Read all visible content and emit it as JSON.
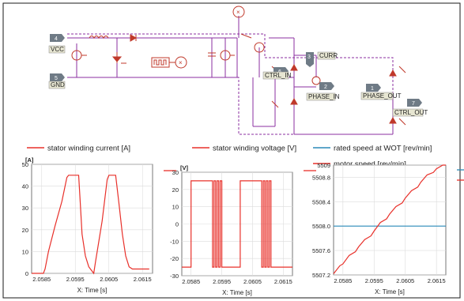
{
  "schematic": {
    "connectors": {
      "vcc": {
        "label": "VCC",
        "pin": "4"
      },
      "gnd": {
        "label": "GND",
        "pin": "5"
      },
      "ctrl_in": {
        "label": "CTRL_IN",
        "pin": "6"
      },
      "curr": {
        "label": "CURR",
        "pin": "3"
      },
      "phase_in": {
        "label": "PHASE_IN",
        "pin": "2"
      },
      "phase_out": {
        "label": "PHASE_OUT",
        "pin": "1"
      },
      "ctrl_out": {
        "label": "CTRL_OUT",
        "pin": "7"
      }
    },
    "colors": {
      "wire": "#8b2fa0",
      "component": "#c0392b",
      "connector_fill": "#e7e6d2"
    }
  },
  "chart_data": [
    {
      "type": "line",
      "legend": [
        "stator winding current [A]"
      ],
      "ylabel": "[A]",
      "xlabel": "X: Time [s]",
      "ylim": [
        0,
        50
      ],
      "yticks": [
        "0",
        "10",
        "20",
        "30",
        "40",
        "50"
      ],
      "xlim": [
        2.0582,
        2.0618
      ],
      "xticks": [
        "2.0585",
        "2.0595",
        "2.0605",
        "2.0615"
      ],
      "series": [
        {
          "name": "stator winding current [A]",
          "color": "#e8302a",
          "x": [
            2.0582,
            2.05855,
            2.0586,
            2.0587,
            2.0589,
            2.0591,
            2.05925,
            2.0593,
            2.0594,
            2.0596,
            2.05965,
            2.0597,
            2.0598,
            2.0599,
            2.06,
            2.06005,
            2.0601,
            2.0603,
            2.06045,
            2.0605,
            2.0606,
            2.0607,
            2.0608,
            2.0609,
            2.061,
            2.0611,
            2.0612,
            2.0613,
            2.0614,
            2.0615,
            2.0616,
            2.0617
          ],
          "y": [
            0,
            0,
            2,
            10,
            22,
            33,
            44,
            45,
            45,
            45,
            32,
            18,
            8,
            3,
            1,
            0,
            5,
            24,
            43,
            45,
            45,
            45,
            32,
            18,
            8,
            3,
            2,
            2,
            2,
            2,
            2,
            2
          ]
        }
      ]
    },
    {
      "type": "line",
      "legend": [
        "stator winding voltage [V]"
      ],
      "ylabel": "[V]",
      "xlabel": "X: Time [s]",
      "ylim": [
        -30,
        30
      ],
      "yticks": [
        "-30",
        "-20",
        "-10",
        "0",
        "10",
        "20",
        "30"
      ],
      "xlim": [
        2.0582,
        2.0618
      ],
      "xticks": [
        "2.0585",
        "2.0595",
        "2.0605",
        "2.0615"
      ],
      "series": [
        {
          "name": "stator winding voltage [V]",
          "color": "#e8302a",
          "x": [
            2.0582,
            2.0585,
            2.0585,
            2.0592,
            2.0592,
            2.05925,
            2.05925,
            2.0593,
            2.0593,
            2.05935,
            2.05935,
            2.0594,
            2.0594,
            2.05945,
            2.05945,
            2.0595,
            2.0595,
            2.0601,
            2.0601,
            2.0608,
            2.0608,
            2.06085,
            2.06085,
            2.0609,
            2.0609,
            2.06095,
            2.06095,
            2.061,
            2.061,
            2.06105,
            2.06105,
            2.0611,
            2.0611,
            2.0618
          ],
          "y": [
            -25,
            -25,
            25,
            25,
            -25,
            -25,
            25,
            25,
            -25,
            -25,
            25,
            25,
            -25,
            -25,
            25,
            25,
            -25,
            -25,
            25,
            25,
            -25,
            -25,
            25,
            25,
            -25,
            -25,
            25,
            25,
            -25,
            -25,
            25,
            25,
            -25,
            -25
          ]
        }
      ]
    },
    {
      "type": "line",
      "legend": [
        "rated speed at WOT [rev/min]",
        "motor speed [rev/min]"
      ],
      "xlabel": "X: Time [s]",
      "ylim": [
        5507.2,
        5509
      ],
      "yticks": [
        "5507.2",
        "5507.6",
        "5508.0",
        "5508.4",
        "5508.8",
        "5509"
      ],
      "xlim": [
        2.0582,
        2.0618
      ],
      "xticks": [
        "2.0585",
        "2.0595",
        "2.0605",
        "2.0615"
      ],
      "series": [
        {
          "name": "rated speed at WOT [rev/min]",
          "color": "#2a8ab8",
          "x": [
            2.0582,
            2.0618
          ],
          "y": [
            5508.0,
            5508.0
          ]
        },
        {
          "name": "motor speed [rev/min]",
          "color": "#e8302a",
          "x": [
            2.0582,
            2.0584,
            2.0585,
            2.0587,
            2.0589,
            2.059,
            2.0592,
            2.0594,
            2.0595,
            2.0597,
            2.0599,
            2.06,
            2.0602,
            2.0604,
            2.0605,
            2.0607,
            2.0609,
            2.061,
            2.0612,
            2.0614,
            2.0615,
            2.0617,
            2.0618
          ],
          "y": [
            5507.22,
            5507.35,
            5507.38,
            5507.52,
            5507.58,
            5507.66,
            5507.78,
            5507.84,
            5507.92,
            5508.06,
            5508.12,
            5508.2,
            5508.32,
            5508.38,
            5508.46,
            5508.58,
            5508.64,
            5508.72,
            5508.84,
            5508.88,
            5508.94,
            5509.0,
            5509.0
          ]
        }
      ]
    }
  ]
}
